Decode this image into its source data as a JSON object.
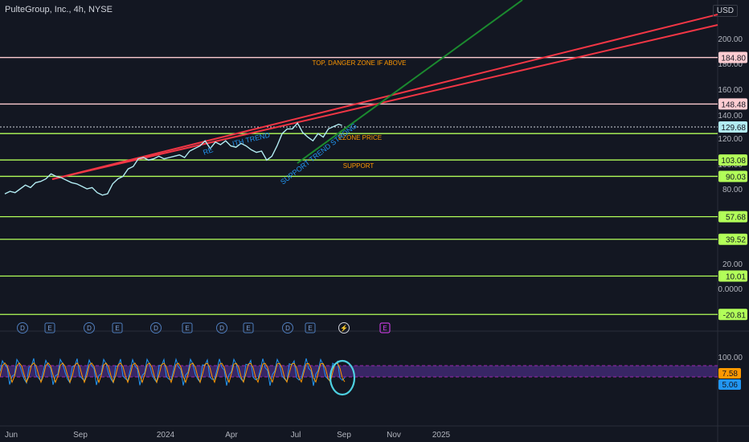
{
  "header": {
    "title": "PulteGroup, Inc., 4h, NYSE",
    "currency": "USD"
  },
  "chart_data": {
    "type": "line",
    "title": "PulteGroup, Inc., 4h, NYSE",
    "price_axis": {
      "ticks": [
        200.0,
        180.0,
        160.0,
        140.0,
        120.0,
        100.0,
        80.0,
        60.0,
        40.0,
        20.0,
        0.0,
        -20.0
      ]
    },
    "time_axis": {
      "ticks": [
        "Jun",
        "Sep",
        "2024",
        "Apr",
        "Jul",
        "Sep",
        "Nov",
        "2025"
      ]
    },
    "series": [
      {
        "values": [
          [
            0.0,
            76
          ],
          [
            0.3,
            78
          ],
          [
            0.6,
            77
          ],
          [
            0.9,
            80
          ],
          [
            1.2,
            83
          ],
          [
            1.5,
            81
          ],
          [
            1.8,
            85
          ],
          [
            2.1,
            86
          ],
          [
            2.4,
            88
          ],
          [
            2.7,
            92
          ],
          [
            3.0,
            90
          ],
          [
            3.3,
            89
          ],
          [
            3.6,
            87
          ],
          [
            3.9,
            85
          ],
          [
            4.2,
            84
          ],
          [
            4.5,
            82
          ],
          [
            4.8,
            80
          ],
          [
            5.1,
            81
          ],
          [
            5.4,
            77
          ],
          [
            5.7,
            75
          ],
          [
            6.0,
            76
          ],
          [
            6.3,
            84
          ],
          [
            6.6,
            88
          ],
          [
            6.9,
            90
          ],
          [
            7.2,
            96
          ],
          [
            7.5,
            98
          ],
          [
            7.8,
            104
          ],
          [
            8.1,
            105
          ],
          [
            8.4,
            103
          ],
          [
            8.7,
            104
          ],
          [
            9.0,
            106
          ],
          [
            9.3,
            104
          ],
          [
            9.6,
            105
          ],
          [
            9.9,
            106
          ],
          [
            10.2,
            107
          ],
          [
            10.5,
            105
          ],
          [
            10.8,
            110
          ],
          [
            11.1,
            112
          ],
          [
            11.4,
            114
          ],
          [
            11.7,
            118
          ],
          [
            12.0,
            112
          ],
          [
            12.3,
            117
          ],
          [
            12.6,
            115
          ],
          [
            12.9,
            118
          ],
          [
            13.2,
            114
          ],
          [
            13.5,
            113
          ],
          [
            13.8,
            116
          ],
          [
            14.1,
            114
          ],
          [
            14.4,
            111
          ],
          [
            14.7,
            109
          ],
          [
            15.0,
            110
          ],
          [
            15.3,
            103
          ],
          [
            15.6,
            106
          ],
          [
            15.9,
            114
          ],
          [
            16.2,
            124
          ],
          [
            16.5,
            128
          ],
          [
            16.8,
            128
          ],
          [
            17.1,
            133
          ],
          [
            17.4,
            125
          ],
          [
            17.7,
            121
          ],
          [
            18.0,
            118
          ],
          [
            18.3,
            124
          ],
          [
            18.6,
            121
          ],
          [
            18.9,
            128
          ],
          [
            19.2,
            130
          ],
          [
            19.5,
            132
          ],
          [
            19.7,
            131
          ]
        ]
      }
    ],
    "horizontal_levels": [
      {
        "label": "184.80",
        "value": 184.8,
        "color": "#ffcdd2",
        "tag_color": "#ffcdd2"
      },
      {
        "label": "148.48",
        "value": 148.48,
        "color": "#ffcdd2",
        "tag_color": "#ffcdd2"
      },
      {
        "label": "129.68",
        "value": 129.68,
        "color": "#d1d4dc",
        "tag_color": "#b2ebf2"
      },
      {
        "label": "103.08",
        "value": 103.08,
        "color": "#b2ff59",
        "tag_color": "#b2ff59"
      },
      {
        "label": "90.03",
        "value": 90.03,
        "color": "#b2ff59",
        "tag_color": "#b2ff59"
      },
      {
        "label": "57.68",
        "value": 57.68,
        "color": "#b2ff59",
        "tag_color": "#b2ff59"
      },
      {
        "label": "39.52",
        "value": 39.52,
        "color": "#b2ff59",
        "tag_color": "#b2ff59"
      },
      {
        "label": "10.01",
        "value": 10.01,
        "color": "#b2ff59",
        "tag_color": "#b2ff59"
      },
      {
        "label": "-20.81",
        "value": -20.81,
        "color": "#b2ff59",
        "tag_color": "#b2ff59"
      }
    ],
    "annotations": [
      {
        "text": "TOP, DANGER ZONE IF ABOVE",
        "color": "#ff9800"
      },
      {
        "text": "EZONE PRICE",
        "color": "#ff9800"
      },
      {
        "text": "SUPPORT",
        "color": "#ff9800"
      },
      {
        "text": "SUPPORT TREND STRONG",
        "color": "#2196f3"
      },
      {
        "text": "RE",
        "color": "#2196f3"
      },
      {
        "text": "ITH TREND",
        "color": "#2196f3"
      }
    ],
    "event_markers": [
      "D",
      "E",
      "D",
      "E",
      "D",
      "E",
      "D",
      "E",
      "D",
      "E",
      "⚡",
      "E"
    ],
    "oscillator": {
      "axis_label": "100.00",
      "value_labels": [
        {
          "label": "7.58",
          "color": "#ff9800"
        },
        {
          "label": "5.06",
          "color": "#2196f3"
        }
      ]
    }
  }
}
